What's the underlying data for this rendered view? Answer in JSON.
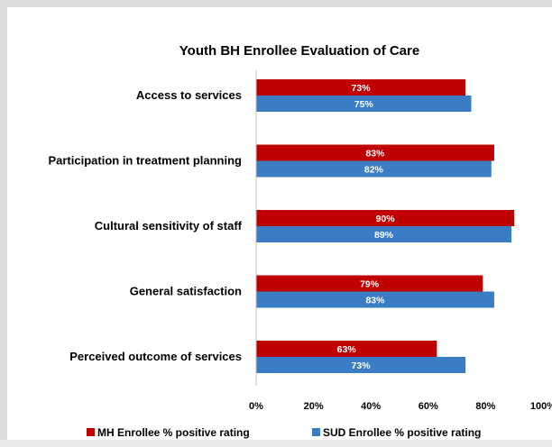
{
  "chart_data": {
    "type": "bar",
    "orientation": "horizontal",
    "title": "Youth BH Enrollee Evaluation of Care",
    "categories": [
      "Access to services",
      "Participation in treatment planning",
      "Cultural sensitivity of staff",
      "General satisfaction",
      "Perceived outcome of services"
    ],
    "series": [
      {
        "name": "MH Enrollee % positive rating",
        "color": "#c00000",
        "values": [
          73,
          83,
          90,
          79,
          63
        ],
        "labels": [
          "73%",
          "83%",
          "90%",
          "79%",
          "63%"
        ]
      },
      {
        "name": "SUD Enrollee % positive rating",
        "color": "#3a7dc4",
        "values": [
          75,
          82,
          89,
          83,
          73
        ],
        "labels": [
          "75%",
          "82%",
          "89%",
          "83%",
          "73%"
        ]
      }
    ],
    "xlim": [
      0,
      100
    ],
    "x_ticks": [
      "0%",
      "20%",
      "40%",
      "60%",
      "80%",
      "100%"
    ],
    "x_tick_values": [
      0,
      20,
      40,
      60,
      80,
      100
    ],
    "grid": false,
    "legend_position": "bottom"
  }
}
